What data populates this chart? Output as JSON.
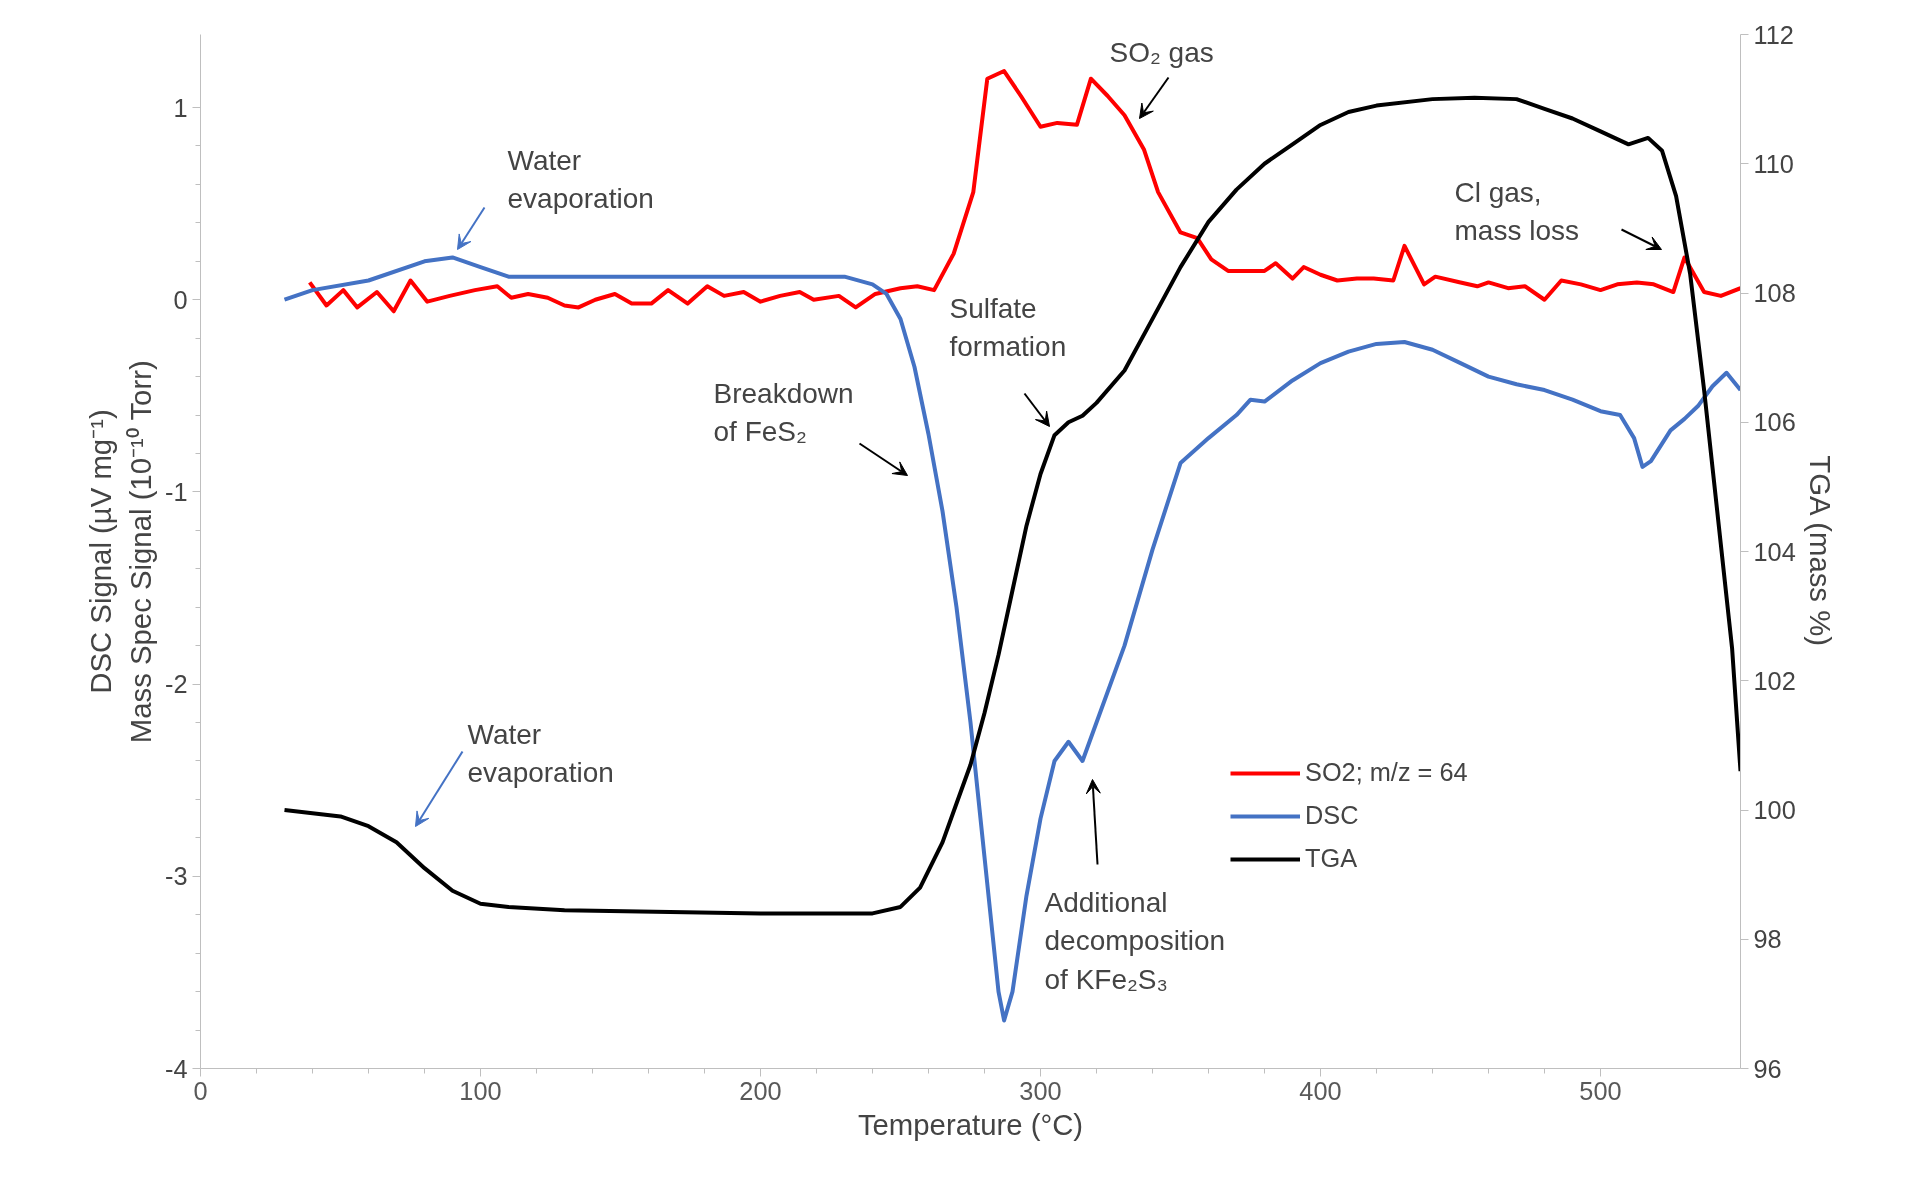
{
  "chart_data": {
    "type": "line",
    "xlabel": "Temperature (°C)",
    "ylabel": "DSC Signal (µV mg⁻¹)\nMass Spec Signal (10⁻¹⁰ Torr)",
    "y2label": "TGA (mass %)",
    "xlim": [
      0,
      550
    ],
    "xticks": [
      0,
      100,
      200,
      300,
      400,
      500
    ],
    "ylim": [
      -4,
      1.38
    ],
    "yticks": [
      -4,
      -3,
      -2,
      -1,
      0,
      1
    ],
    "y2lim": [
      96,
      112
    ],
    "y2ticks": [
      96,
      98,
      100,
      102,
      104,
      106,
      108,
      110,
      112
    ],
    "grid": false,
    "legend": "bottom right",
    "series": [
      {
        "name": "SO2; m/z = 64",
        "color": "#ff0000",
        "x": [
          39,
          45,
          51,
          56,
          63,
          69,
          75,
          81,
          89,
          98,
          106,
          111,
          117,
          124,
          130,
          135,
          141,
          148,
          154,
          161,
          167,
          174,
          181,
          187,
          194,
          200,
          207,
          214,
          219,
          228,
          234,
          241,
          250,
          256,
          262,
          269,
          276,
          281,
          287,
          293,
          300,
          306,
          313,
          318,
          324,
          330,
          337,
          342,
          350,
          356,
          361,
          367,
          374,
          380,
          384,
          390,
          394,
          400,
          406,
          413,
          419,
          426,
          430,
          437,
          441,
          450,
          456,
          460,
          467,
          473,
          480,
          486,
          493,
          500,
          506,
          513,
          519,
          526,
          530,
          537,
          543,
          550
        ],
        "values": [
          0.09,
          -0.03,
          0.05,
          -0.04,
          0.04,
          -0.06,
          0.1,
          -0.01,
          0.02,
          0.05,
          0.07,
          0.01,
          0.03,
          0.01,
          -0.03,
          -0.04,
          0.0,
          0.03,
          -0.02,
          -0.02,
          0.05,
          -0.02,
          0.07,
          0.02,
          0.04,
          -0.01,
          0.02,
          0.04,
          0.0,
          0.02,
          -0.04,
          0.03,
          0.06,
          0.07,
          0.05,
          0.24,
          0.56,
          1.15,
          1.19,
          1.06,
          0.9,
          0.92,
          0.91,
          1.15,
          1.06,
          0.96,
          0.78,
          0.56,
          0.35,
          0.32,
          0.21,
          0.15,
          0.15,
          0.15,
          0.19,
          0.11,
          0.17,
          0.13,
          0.1,
          0.11,
          0.11,
          0.1,
          0.28,
          0.08,
          0.12,
          0.09,
          0.07,
          0.09,
          0.06,
          0.07,
          0.0,
          0.1,
          0.08,
          0.05,
          0.08,
          0.09,
          0.08,
          0.04,
          0.22,
          0.04,
          0.02,
          0.06
        ]
      },
      {
        "name": "DSC",
        "color": "#4472c4",
        "x": [
          30,
          40,
          60,
          80,
          90,
          100,
          110,
          150,
          200,
          230,
          240,
          245,
          250,
          255,
          260,
          265,
          270,
          275,
          280,
          285,
          287,
          290,
          295,
          300,
          305,
          310,
          315,
          320,
          330,
          340,
          350,
          360,
          370,
          375,
          380,
          390,
          400,
          410,
          420,
          430,
          440,
          450,
          460,
          470,
          480,
          490,
          500,
          507,
          512,
          515,
          518,
          525,
          530,
          535,
          540,
          545,
          550
        ],
        "values": [
          0.0,
          0.05,
          0.1,
          0.2,
          0.22,
          0.17,
          0.12,
          0.12,
          0.12,
          0.12,
          0.08,
          0.03,
          -0.1,
          -0.35,
          -0.7,
          -1.1,
          -1.6,
          -2.2,
          -2.9,
          -3.6,
          -3.75,
          -3.6,
          -3.1,
          -2.7,
          -2.4,
          -2.3,
          -2.4,
          -2.2,
          -1.8,
          -1.3,
          -0.85,
          -0.72,
          -0.6,
          -0.52,
          -0.53,
          -0.42,
          -0.33,
          -0.27,
          -0.23,
          -0.22,
          -0.26,
          -0.33,
          -0.4,
          -0.44,
          -0.47,
          -0.52,
          -0.58,
          -0.6,
          -0.72,
          -0.87,
          -0.84,
          -0.68,
          -0.62,
          -0.55,
          -0.45,
          -0.38,
          -0.47
        ]
      },
      {
        "name": "TGA",
        "color": "#000000",
        "axis": "y2",
        "x": [
          30,
          50,
          60,
          70,
          80,
          90,
          100,
          110,
          130,
          200,
          240,
          250,
          257,
          265,
          270,
          275,
          280,
          285,
          290,
          295,
          300,
          305,
          310,
          315,
          320,
          330,
          340,
          350,
          360,
          370,
          380,
          390,
          400,
          410,
          420,
          440,
          455,
          470,
          480,
          490,
          500,
          510,
          517,
          522,
          527,
          532,
          537,
          542,
          547,
          550
        ],
        "values": [
          100.0,
          99.9,
          99.75,
          99.5,
          99.1,
          98.75,
          98.55,
          98.5,
          98.45,
          98.4,
          98.4,
          98.5,
          98.8,
          99.5,
          100.1,
          100.7,
          101.5,
          102.4,
          103.4,
          104.4,
          105.2,
          105.8,
          106.0,
          106.1,
          106.3,
          106.8,
          107.6,
          108.4,
          109.1,
          109.6,
          110.0,
          110.3,
          110.6,
          110.8,
          110.9,
          111.0,
          111.02,
          111.0,
          110.85,
          110.7,
          110.5,
          110.3,
          110.4,
          110.2,
          109.5,
          108.3,
          106.5,
          104.5,
          102.5,
          100.6
        ]
      }
    ],
    "annotations": [
      "SO₂ gas",
      "Water evaporation",
      "Water evaporation",
      "Breakdown of FeS₂",
      "Sulfate formation",
      "Cl gas, mass loss",
      "Additional decomposition of KFe₂S₃"
    ]
  }
}
